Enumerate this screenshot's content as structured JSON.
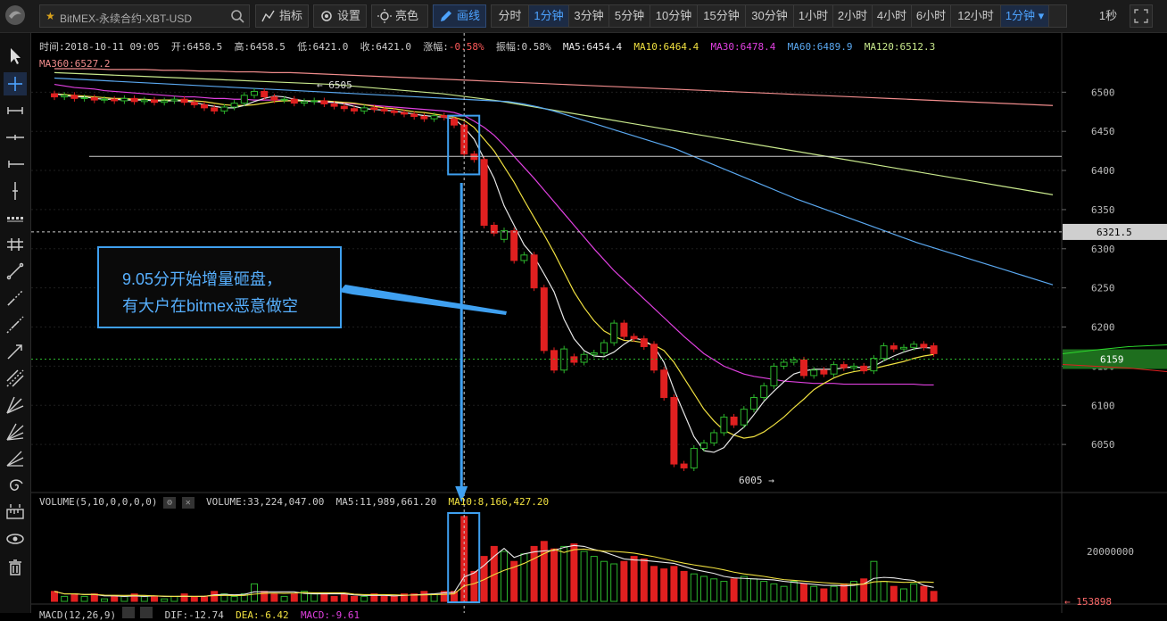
{
  "toolbar": {
    "symbol": "BitMEX-永续合约-XBT-USD",
    "indicators_label": "指标",
    "settings_label": "设置",
    "theme_label": "亮色",
    "draw_label": "画线",
    "periods": [
      "分时",
      "1分钟",
      "3分钟",
      "5分钟",
      "10分钟",
      "15分钟",
      "30分钟",
      "1小时",
      "2小时",
      "4小时",
      "6小时",
      "12小时",
      "1分钟"
    ],
    "active_period_index": 1,
    "interval_label": "1秒"
  },
  "info_line1": {
    "time": "时间:2018-10-11 09:05",
    "open": "开:6458.5",
    "high": "高:6458.5",
    "low": "低:6421.0",
    "close": "收:6421.0",
    "change_label": "涨幅:",
    "change_value": "-0.58%",
    "amplitude": "振幅:0.58%",
    "ma5": "MA5:6454.4",
    "ma10": "MA10:6464.4",
    "ma30": "MA30:6478.4",
    "ma60": "MA60:6489.9",
    "ma120": "MA120:6512.3"
  },
  "info_line2": {
    "ma360": "MA360:6527.2"
  },
  "price_axis": {
    "ticks": [
      "6500",
      "6450",
      "6400",
      "6350",
      "6300",
      "6250",
      "6200",
      "6150",
      "6100",
      "6050"
    ],
    "crosshair_price": "6321.5",
    "last_price": "6159"
  },
  "markers": {
    "high": "← 6505",
    "low": "6005 →"
  },
  "callout": {
    "line1": "9.05分开始增量砸盘，",
    "line2": "有大户在bitmex恶意做空"
  },
  "volume": {
    "title": "VOLUME(5,10,0,0,0,0)",
    "volume": "VOLUME:33,224,047.00",
    "ma5": "MA5:11,989,661.20",
    "ma10": "MA10:8,166,427.20",
    "axis_tick": "20000000",
    "last": "← 153898"
  },
  "macd": {
    "title": "MACD(12,26,9)",
    "dif": "DIF:-12.74",
    "dea": "DEA:-6.42",
    "macd": "MACD:-9.61"
  },
  "colors": {
    "up": "#2cb52c",
    "down": "#e02020",
    "ma5": "#e8e8e8",
    "ma10": "#f0e040",
    "ma30": "#e040e0",
    "ma60": "#5aa8f0",
    "ma120": "#c8e88c",
    "ma360": "#f08c8c",
    "accent": "#4da3ff"
  },
  "chart_data": {
    "type": "candlestick",
    "ylim": [
      6000,
      6530
    ],
    "candles": [
      {
        "o": 6498,
        "c": 6494
      },
      {
        "o": 6494,
        "c": 6496
      },
      {
        "o": 6496,
        "c": 6492
      },
      {
        "o": 6492,
        "c": 6493
      },
      {
        "o": 6493,
        "c": 6490
      },
      {
        "o": 6490,
        "c": 6491
      },
      {
        "o": 6491,
        "c": 6489
      },
      {
        "o": 6489,
        "c": 6492
      },
      {
        "o": 6492,
        "c": 6488
      },
      {
        "o": 6488,
        "c": 6490
      },
      {
        "o": 6490,
        "c": 6487
      },
      {
        "o": 6487,
        "c": 6489
      },
      {
        "o": 6489,
        "c": 6491
      },
      {
        "o": 6491,
        "c": 6487
      },
      {
        "o": 6487,
        "c": 6484
      },
      {
        "o": 6484,
        "c": 6480
      },
      {
        "o": 6480,
        "c": 6476
      },
      {
        "o": 6476,
        "c": 6481
      },
      {
        "o": 6481,
        "c": 6486
      },
      {
        "o": 6486,
        "c": 6496
      },
      {
        "o": 6496,
        "c": 6501
      },
      {
        "o": 6501,
        "c": 6494
      },
      {
        "o": 6494,
        "c": 6490
      },
      {
        "o": 6490,
        "c": 6491
      },
      {
        "o": 6491,
        "c": 6486
      },
      {
        "o": 6486,
        "c": 6488
      },
      {
        "o": 6488,
        "c": 6489
      },
      {
        "o": 6489,
        "c": 6485
      },
      {
        "o": 6485,
        "c": 6482
      },
      {
        "o": 6482,
        "c": 6479
      },
      {
        "o": 6479,
        "c": 6476
      },
      {
        "o": 6476,
        "c": 6480
      },
      {
        "o": 6480,
        "c": 6478
      },
      {
        "o": 6478,
        "c": 6476
      },
      {
        "o": 6476,
        "c": 6474
      },
      {
        "o": 6474,
        "c": 6472
      },
      {
        "o": 6472,
        "c": 6469
      },
      {
        "o": 6469,
        "c": 6466
      },
      {
        "o": 6466,
        "c": 6470
      },
      {
        "o": 6470,
        "c": 6468
      },
      {
        "o": 6466,
        "c": 6458
      },
      {
        "o": 6458,
        "c": 6421
      },
      {
        "o": 6421,
        "c": 6414
      },
      {
        "o": 6414,
        "c": 6330
      },
      {
        "o": 6330,
        "c": 6320
      },
      {
        "o": 6312,
        "c": 6323
      },
      {
        "o": 6323,
        "c": 6285
      },
      {
        "o": 6285,
        "c": 6292
      },
      {
        "o": 6292,
        "c": 6250
      },
      {
        "o": 6250,
        "c": 6170
      },
      {
        "o": 6170,
        "c": 6145
      },
      {
        "o": 6145,
        "c": 6172
      },
      {
        "o": 6162,
        "c": 6155
      },
      {
        "o": 6155,
        "c": 6165
      },
      {
        "o": 6165,
        "c": 6167
      },
      {
        "o": 6167,
        "c": 6180
      },
      {
        "o": 6180,
        "c": 6205
      },
      {
        "o": 6205,
        "c": 6188
      },
      {
        "o": 6188,
        "c": 6185
      },
      {
        "o": 6185,
        "c": 6175
      },
      {
        "o": 6178,
        "c": 6145
      },
      {
        "o": 6145,
        "c": 6110
      },
      {
        "o": 6110,
        "c": 6025
      },
      {
        "o": 6025,
        "c": 6020
      },
      {
        "o": 6020,
        "c": 6045
      },
      {
        "o": 6045,
        "c": 6052
      },
      {
        "o": 6052,
        "c": 6065
      },
      {
        "o": 6065,
        "c": 6085
      },
      {
        "o": 6085,
        "c": 6075
      },
      {
        "o": 6075,
        "c": 6095
      },
      {
        "o": 6095,
        "c": 6110
      },
      {
        "o": 6110,
        "c": 6125
      },
      {
        "o": 6125,
        "c": 6150
      },
      {
        "o": 6150,
        "c": 6155
      },
      {
        "o": 6155,
        "c": 6158
      },
      {
        "o": 6158,
        "c": 6138
      },
      {
        "o": 6138,
        "c": 6145
      },
      {
        "o": 6145,
        "c": 6140
      },
      {
        "o": 6140,
        "c": 6152
      },
      {
        "o": 6152,
        "c": 6148
      },
      {
        "o": 6148,
        "c": 6150
      },
      {
        "o": 6150,
        "c": 6144
      },
      {
        "o": 6144,
        "c": 6160
      },
      {
        "o": 6160,
        "c": 6176
      },
      {
        "o": 6176,
        "c": 6172
      },
      {
        "o": 6172,
        "c": 6174
      },
      {
        "o": 6174,
        "c": 6178
      },
      {
        "o": 6178,
        "c": 6174
      },
      {
        "o": 6176,
        "c": 6166
      }
    ],
    "ma5": [
      6498,
      6496,
      6494,
      6494,
      6492,
      6491,
      6491,
      6490,
      6490,
      6490,
      6489,
      6489,
      6489,
      6489,
      6487,
      6484,
      6482,
      6480,
      6480,
      6483,
      6488,
      6492,
      6495,
      6494,
      6491,
      6489,
      6488,
      6488,
      6487,
      6485,
      6482,
      6479,
      6478,
      6477,
      6476,
      6474,
      6472,
      6470,
      6469,
      6468,
      6466,
      6455,
      6440,
      6415,
      6390,
      6355,
      6330,
      6305,
      6290,
      6268,
      6245,
      6210,
      6185,
      6170,
      6163,
      6162,
      6168,
      6178,
      6186,
      6183,
      6175,
      6155,
      6120,
      6090,
      6060,
      6042,
      6040,
      6046,
      6062,
      6072,
      6088,
      6105,
      6118,
      6130,
      6140,
      6144,
      6146,
      6146,
      6146,
      6148,
      6149,
      6148,
      6150,
      6157,
      6163,
      6168,
      6172,
      6174,
      6173
    ],
    "ma10": [
      6498,
      6497,
      6496,
      6495,
      6494,
      6493,
      6492,
      6492,
      6491,
      6491,
      6490,
      6490,
      6490,
      6490,
      6489,
      6488,
      6486,
      6484,
      6483,
      6483,
      6484,
      6486,
      6488,
      6489,
      6489,
      6489,
      6489,
      6489,
      6488,
      6487,
      6486,
      6484,
      6482,
      6480,
      6479,
      6477,
      6475,
      6474,
      6472,
      6470,
      6468,
      6464,
      6455,
      6440,
      6425,
      6405,
      6385,
      6362,
      6340,
      6318,
      6295,
      6270,
      6245,
      6225,
      6208,
      6195,
      6188,
      6183,
      6182,
      6180,
      6177,
      6170,
      6155,
      6135,
      6115,
      6095,
      6080,
      6068,
      6062,
      6058,
      6060,
      6066,
      6075,
      6085,
      6097,
      6108,
      6120,
      6128,
      6135,
      6140,
      6143,
      6145,
      6147,
      6150,
      6153,
      6156,
      6160,
      6163,
      6165
    ],
    "ma30": [
      6510,
      6508,
      6506,
      6505,
      6504,
      6502,
      6501,
      6500,
      6499,
      6498,
      6497,
      6496,
      6495,
      6494,
      6494,
      6493,
      6492,
      6492,
      6491,
      6491,
      6490,
      6490,
      6490,
      6490,
      6489,
      6489,
      6488,
      6487,
      6487,
      6486,
      6485,
      6484,
      6483,
      6482,
      6481,
      6480,
      6479,
      6478,
      6477,
      6476,
      6474,
      6470,
      6463,
      6455,
      6445,
      6432,
      6418,
      6404,
      6390,
      6375,
      6360,
      6345,
      6330,
      6315,
      6300,
      6286,
      6272,
      6260,
      6248,
      6236,
      6224,
      6212,
      6200,
      6188,
      6177,
      6166,
      6158,
      6150,
      6145,
      6140,
      6137,
      6135,
      6133,
      6131,
      6130,
      6129,
      6128,
      6128,
      6128,
      6127,
      6127,
      6127,
      6127,
      6127,
      6127,
      6127,
      6127,
      6126,
      6126
    ],
    "ma60": [
      6518,
      6517,
      6516,
      6515,
      6514,
      6513,
      6512,
      6511,
      6510,
      6509,
      6508,
      6507,
      6506,
      6505,
      6504,
      6503,
      6502,
      6501,
      6500,
      6499,
      6498,
      6497,
      6496,
      6495,
      6494,
      6493,
      6492,
      6491,
      6490,
      6489,
      6488,
      6485,
      6481,
      6476,
      6470,
      6464,
      6458,
      6452,
      6446,
      6440,
      6434,
      6428,
      6420,
      6412,
      6404,
      6396,
      6388,
      6380,
      6372,
      6364,
      6357,
      6350,
      6343,
      6336,
      6329,
      6322,
      6315,
      6308,
      6302,
      6296,
      6290,
      6284,
      6278,
      6272,
      6266,
      6260,
      6254
    ],
    "ma120": [
      6525,
      6524,
      6523,
      6522,
      6521,
      6520,
      6519,
      6518,
      6517,
      6516,
      6515,
      6514,
      6513,
      6512,
      6511,
      6510,
      6508,
      6506,
      6504,
      6502,
      6500,
      6498,
      6495,
      6492,
      6489,
      6485,
      6481,
      6477,
      6473,
      6469,
      6465,
      6461,
      6457,
      6453,
      6449,
      6445,
      6441,
      6437,
      6433,
      6429,
      6425,
      6421,
      6417,
      6413,
      6409,
      6405,
      6401,
      6397,
      6393,
      6389,
      6385,
      6381,
      6377,
      6373,
      6369
    ],
    "ma360": [
      6530,
      6530,
      6530,
      6529,
      6529,
      6529,
      6528,
      6528,
      6527,
      6527,
      6526,
      6526,
      6525,
      6525,
      6524,
      6523,
      6522,
      6521,
      6520,
      6519,
      6518,
      6517,
      6516,
      6515,
      6514,
      6513,
      6512,
      6511,
      6510,
      6509,
      6508,
      6507,
      6506,
      6505,
      6504,
      6503,
      6502,
      6501,
      6500,
      6499,
      6498,
      6497,
      6496,
      6495,
      6494,
      6493,
      6492,
      6491,
      6490,
      6489,
      6488,
      6487,
      6486,
      6485,
      6484,
      6483
    ],
    "volumes": [
      4,
      2,
      3,
      2,
      3,
      1,
      2,
      2,
      3,
      2,
      2,
      1,
      2,
      3,
      2,
      2,
      4,
      3,
      2,
      3,
      7,
      4,
      3,
      2,
      3,
      4,
      3,
      3,
      2,
      3,
      2,
      2,
      3,
      2,
      2,
      3,
      3,
      4,
      3,
      4,
      4,
      34,
      12,
      18,
      22,
      20,
      16,
      19,
      22,
      24,
      21,
      22,
      23,
      20,
      18,
      16,
      15,
      16,
      18,
      17,
      14,
      13,
      14,
      12,
      11,
      10,
      9,
      8,
      9,
      10,
      9,
      8,
      7,
      6,
      8,
      7,
      6,
      5,
      6,
      7,
      8,
      9,
      16,
      8,
      6,
      5,
      7,
      6,
      4
    ],
    "volume_ylim": [
      0,
      40
    ]
  }
}
